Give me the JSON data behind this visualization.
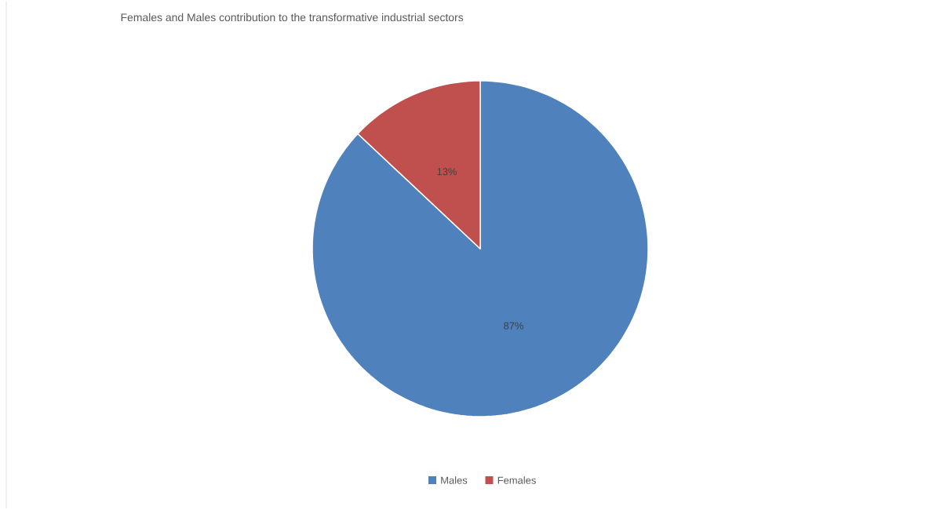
{
  "chart_data": {
    "type": "pie",
    "title": "Females and Males contribution to the transformative industrial sectors",
    "categories": [
      "Males",
      "Females"
    ],
    "values": [
      87,
      13
    ],
    "colors": [
      "#4f81bd",
      "#c0504d"
    ],
    "value_labels": [
      "87%",
      "13%"
    ],
    "legend": "bottom"
  }
}
